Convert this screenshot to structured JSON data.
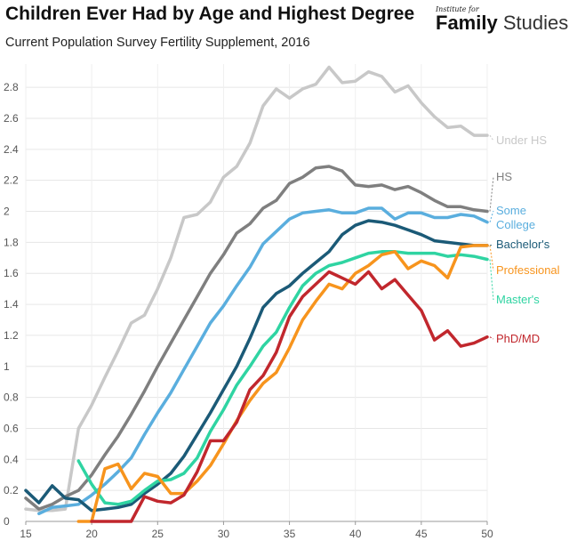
{
  "header": {
    "title": "Children Ever Had by Age and Highest Degree",
    "subtitle": "Current Population Survey Fertility Supplement, 2016",
    "logo_small": "Institute for",
    "logo_bold": "Family",
    "logo_light": "Studies"
  },
  "chart_data": {
    "type": "line",
    "title": "Children Ever Had by Age and Highest Degree",
    "subtitle": "Current Population Survey Fertility Supplement, 2016",
    "xlabel": "",
    "ylabel": "",
    "xlim": [
      15,
      50
    ],
    "ylim": [
      0,
      2.95
    ],
    "x_ticks": [
      15,
      20,
      25,
      30,
      35,
      40,
      45,
      50
    ],
    "x_tick_labels": [
      "15",
      "20",
      "25",
      "30",
      "35",
      "40",
      "45",
      "50"
    ],
    "y_ticks": [
      0,
      0.2,
      0.4,
      0.6,
      0.8,
      1,
      1.2,
      1.4,
      1.6,
      1.8,
      2,
      2.2,
      2.4,
      2.6,
      2.8
    ],
    "y_tick_labels": [
      "0",
      "0.2",
      "0.4",
      "0.6",
      "0.8",
      "1",
      "1.2",
      "1.4",
      "1.6",
      "1.8",
      "2",
      "2.2",
      "2.4",
      "2.6",
      "2.8"
    ],
    "grid": true,
    "series": [
      {
        "name": "Under HS",
        "label_lines": [
          "Under HS"
        ],
        "color": "#c8c8c8",
        "x": [
          15,
          16,
          17,
          18,
          19,
          20,
          21,
          22,
          23,
          24,
          25,
          26,
          27,
          28,
          29,
          30,
          31,
          32,
          33,
          34,
          35,
          36,
          37,
          38,
          39,
          40,
          41,
          42,
          43,
          44,
          45,
          46,
          47,
          48,
          49,
          50
        ],
        "values": [
          0.08,
          0.07,
          0.07,
          0.08,
          0.6,
          0.75,
          0.93,
          1.1,
          1.28,
          1.33,
          1.5,
          1.7,
          1.96,
          1.98,
          2.06,
          2.22,
          2.29,
          2.44,
          2.68,
          2.79,
          2.73,
          2.79,
          2.82,
          2.93,
          2.83,
          2.84,
          2.9,
          2.87,
          2.77,
          2.81,
          2.7,
          2.61,
          2.54,
          2.55,
          2.49,
          2.49
        ]
      },
      {
        "name": "HS",
        "label_lines": [
          "HS"
        ],
        "color": "#7f7f7f",
        "x": [
          15,
          16,
          17,
          18,
          19,
          20,
          21,
          22,
          23,
          24,
          25,
          26,
          27,
          28,
          29,
          30,
          31,
          32,
          33,
          34,
          35,
          36,
          37,
          38,
          39,
          40,
          41,
          42,
          43,
          44,
          45,
          46,
          47,
          48,
          49,
          50
        ],
        "values": [
          0.15,
          0.08,
          0.11,
          0.16,
          0.2,
          0.3,
          0.43,
          0.55,
          0.69,
          0.84,
          1.0,
          1.15,
          1.3,
          1.45,
          1.6,
          1.72,
          1.86,
          1.92,
          2.02,
          2.07,
          2.18,
          2.22,
          2.28,
          2.29,
          2.26,
          2.17,
          2.16,
          2.17,
          2.14,
          2.16,
          2.12,
          2.07,
          2.03,
          2.03,
          2.01,
          2.0
        ]
      },
      {
        "name": "Some College",
        "label_lines": [
          "Some",
          "College"
        ],
        "color": "#5aaede",
        "x": [
          16,
          17,
          18,
          19,
          20,
          21,
          22,
          23,
          24,
          25,
          26,
          27,
          28,
          29,
          30,
          31,
          32,
          33,
          34,
          35,
          36,
          37,
          38,
          39,
          40,
          41,
          42,
          43,
          44,
          45,
          46,
          47,
          48,
          49,
          50
        ],
        "values": [
          0.05,
          0.09,
          0.1,
          0.11,
          0.17,
          0.24,
          0.32,
          0.41,
          0.56,
          0.7,
          0.83,
          0.98,
          1.13,
          1.28,
          1.39,
          1.52,
          1.64,
          1.79,
          1.87,
          1.95,
          1.99,
          2.0,
          2.01,
          1.99,
          1.99,
          2.02,
          2.02,
          1.95,
          1.99,
          1.99,
          1.96,
          1.96,
          1.98,
          1.97,
          1.93
        ]
      },
      {
        "name": "Bachelor's",
        "label_lines": [
          "Bachelor's"
        ],
        "color": "#1b5a77",
        "x": [
          15,
          16,
          17,
          18,
          19,
          20,
          21,
          22,
          23,
          24,
          25,
          26,
          27,
          28,
          29,
          30,
          31,
          32,
          33,
          34,
          35,
          36,
          37,
          38,
          39,
          40,
          41,
          42,
          43,
          44,
          45,
          46,
          47,
          48,
          49,
          50
        ],
        "values": [
          0.2,
          0.12,
          0.23,
          0.15,
          0.14,
          0.07,
          0.08,
          0.09,
          0.11,
          0.18,
          0.24,
          0.31,
          0.42,
          0.56,
          0.7,
          0.85,
          1.0,
          1.18,
          1.38,
          1.47,
          1.52,
          1.6,
          1.67,
          1.74,
          1.85,
          1.91,
          1.94,
          1.93,
          1.91,
          1.88,
          1.85,
          1.81,
          1.8,
          1.79,
          1.78,
          1.78
        ]
      },
      {
        "name": "Master's",
        "label_lines": [
          "Master's"
        ],
        "color": "#2fd4a2",
        "x": [
          19,
          20,
          21,
          22,
          23,
          24,
          25,
          26,
          27,
          28,
          29,
          30,
          31,
          32,
          33,
          34,
          35,
          36,
          37,
          38,
          39,
          40,
          41,
          42,
          43,
          44,
          45,
          46,
          47,
          48,
          49,
          50
        ],
        "values": [
          0.39,
          0.24,
          0.12,
          0.11,
          0.13,
          0.2,
          0.26,
          0.27,
          0.31,
          0.41,
          0.58,
          0.72,
          0.88,
          1.0,
          1.13,
          1.22,
          1.38,
          1.52,
          1.6,
          1.65,
          1.67,
          1.7,
          1.73,
          1.74,
          1.74,
          1.73,
          1.73,
          1.73,
          1.71,
          1.72,
          1.71,
          1.69
        ]
      },
      {
        "name": "Professional",
        "label_lines": [
          "Professional"
        ],
        "color": "#f7941d",
        "x": [
          19,
          20,
          21,
          22,
          23,
          24,
          25,
          26,
          27,
          28,
          29,
          30,
          31,
          32,
          33,
          34,
          35,
          36,
          37,
          38,
          39,
          40,
          41,
          42,
          43,
          44,
          45,
          46,
          47,
          48,
          49,
          50
        ],
        "values": [
          0.0,
          0.0,
          0.34,
          0.37,
          0.21,
          0.31,
          0.29,
          0.18,
          0.18,
          0.26,
          0.36,
          0.5,
          0.65,
          0.78,
          0.89,
          0.96,
          1.12,
          1.3,
          1.42,
          1.53,
          1.5,
          1.6,
          1.65,
          1.72,
          1.74,
          1.63,
          1.68,
          1.65,
          1.57,
          1.77,
          1.78,
          1.78
        ]
      },
      {
        "name": "PhD/MD",
        "label_lines": [
          "PhD/MD"
        ],
        "color": "#c1272d",
        "x": [
          20,
          21,
          22,
          23,
          24,
          25,
          26,
          27,
          28,
          29,
          30,
          31,
          32,
          33,
          34,
          35,
          36,
          37,
          38,
          39,
          40,
          41,
          42,
          43,
          44,
          45,
          46,
          47,
          48,
          49,
          50
        ],
        "values": [
          0.0,
          0.0,
          0.0,
          0.0,
          0.16,
          0.13,
          0.12,
          0.17,
          0.32,
          0.52,
          0.52,
          0.64,
          0.85,
          0.94,
          1.09,
          1.32,
          1.45,
          1.53,
          1.61,
          1.57,
          1.53,
          1.61,
          1.5,
          1.56,
          1.46,
          1.36,
          1.17,
          1.23,
          1.13,
          1.15,
          1.19
        ]
      }
    ]
  }
}
